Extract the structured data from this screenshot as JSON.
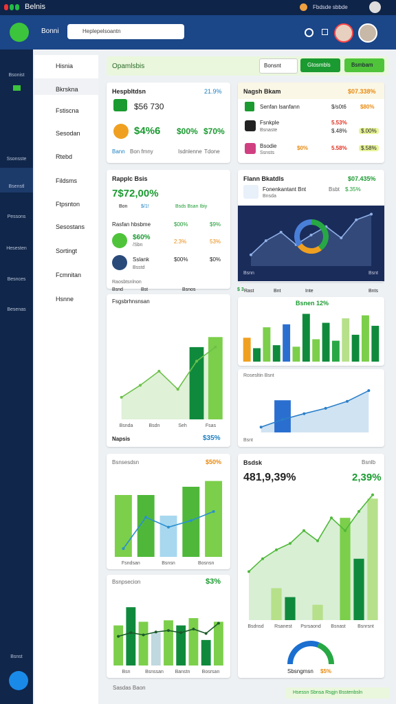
{
  "status_bar": {
    "app": "Belnis",
    "info": "Fbdsde sbbde"
  },
  "header": {
    "title": "Bonni",
    "search": "Heplepelsoantn"
  },
  "icon_nav": [
    "Bsonist",
    "Ssonsste",
    "Bsenstl",
    "Pessons",
    "Hesesten",
    "Besnces",
    "Besenas",
    "Bsnst"
  ],
  "side_menu": [
    "Hisnia",
    "Bkrskna",
    "Fstiscna",
    "Sesodan",
    "Rtebd",
    "Fildsms",
    "Ftpsnton",
    "Sesostans",
    "Sortingt",
    "Fcmnitan",
    "Hsnne"
  ],
  "toolbar": {
    "title": "Opamlsbis",
    "dropdown": "Bonsnt",
    "buttons": [
      "Gtosmbls",
      "Bsmbam"
    ]
  },
  "cards": {
    "summary": {
      "title": "Hespbltdsn",
      "badge": "21.9%",
      "amount": "$56 730",
      "big": "$4%6",
      "stats": [
        "$00%",
        "$70%"
      ],
      "footer": [
        "Bann",
        "Bon fmny",
        "Isdnlenne",
        "Tdone"
      ]
    },
    "accounts": {
      "title": "Nagsh Bkam",
      "badge": "$07.338%",
      "rows": [
        {
          "name": "Senfan lsanfann",
          "values": [
            "$/s0t6",
            "$80%"
          ]
        },
        {
          "name": "Fsnkple",
          "sub": "Bsnaste",
          "values": [
            "5.53%",
            "$.48%",
            "$.00%"
          ]
        },
        {
          "name": "Bsodie",
          "sub": "Ssnsts",
          "values": [
            "$0%",
            "5.58%",
            "$.58%"
          ]
        }
      ]
    },
    "report": {
      "title": "Rapplc Bsis",
      "big": "7$72,00%",
      "meta": [
        "Bon",
        "$/1!",
        "Bsds Bsan Ibiy"
      ],
      "rows": [
        {
          "name": "Rasfan hbsbme",
          "values": [
            "$00%",
            "$9%"
          ]
        },
        {
          "name": "$60%",
          "sub": "/Sbn",
          "values": [
            "2.3%",
            "53%"
          ]
        },
        {
          "name": "Sslank",
          "sub": "Bsstd",
          "values": [
            "$00%",
            "$0%"
          ]
        }
      ],
      "footer": "Raosbtsnlnon"
    },
    "overview": {
      "title": "Flann Bkatdls",
      "badge": "$07.435%",
      "item": "Fonenkantant Bnt",
      "sub": "Bnsda",
      "meta": [
        "Bsbt",
        "$.35%"
      ],
      "chart": {
        "type": "bar-line",
        "line": [
          20,
          45,
          60,
          38,
          55,
          70,
          50,
          82,
          92
        ],
        "line_color": "#8fb0e8",
        "area": true,
        "ylim": [
          0,
          100
        ]
      },
      "donut": {
        "type": "donut",
        "values": [
          40,
          25,
          35
        ],
        "colors": [
          "#27a844",
          "#f0a020",
          "#4a7fd8"
        ]
      },
      "chart_labels": [
        "Bsnn",
        "Bsnt"
      ],
      "footer": [
        "Rast",
        "Bnt",
        "Inte",
        "Bnts"
      ]
    },
    "bars": {
      "header": [
        "Bsnd",
        "Bst",
        "Bsnos",
        "$ 3"
      ],
      "title": "Bsnen 12%",
      "chart": {
        "type": "bar-line",
        "bars": [
          32,
          18,
          46,
          22,
          50,
          20,
          64,
          30,
          52,
          28,
          58,
          36,
          62,
          48
        ],
        "colors": [
          "#f0a020",
          "#0f8a3c",
          "#7ccf4a",
          "#0f8a3c",
          "#2a6fd0",
          "#7ccf4a",
          "#0f8a3c",
          "#7ccf4a",
          "#0f8a3c",
          "#27a844",
          "#b6e08a",
          "#0f8a3c",
          "#7ccf4a",
          "#0f8a3c"
        ],
        "ylim": [
          0,
          70
        ]
      }
    },
    "trend": {
      "title": "Fsgsbrhnsnsan",
      "footer": [
        "Napsis",
        "$35%"
      ],
      "chart": {
        "type": "bar-line",
        "bars": [
          null,
          null,
          null,
          null,
          72,
          82
        ],
        "colors": [
          "#0f8a3c",
          "#0f8a3c",
          "#0f8a3c",
          "#0f8a3c",
          "#0f8a3c",
          "#7ccf4a"
        ],
        "line": [
          22,
          34,
          48,
          30,
          58,
          72
        ],
        "line_color": "#6cc04a",
        "area": true,
        "ylim": [
          0,
          100
        ],
        "x_labels": [
          "Bsnda",
          "Bsdn",
          "Seh",
          "Fsas"
        ]
      }
    },
    "lines": {
      "title": "Rosesltin Bsnt",
      "label": "Bsnt",
      "chart": {
        "type": "bar-line",
        "bars": [
          null,
          60,
          null,
          null,
          null,
          null
        ],
        "colors": [
          "#2a6fd0",
          "#2a6fd0",
          "#2a6fd0",
          "#2a6fd0",
          "#2a6fd0",
          "#2a6fd0"
        ],
        "line": [
          10,
          24,
          35,
          45,
          58,
          78
        ],
        "line_color": "#2a7fc8",
        "area": true,
        "ylim": [
          0,
          100
        ]
      }
    },
    "revenue": {
      "title": "Bsnsesdsn",
      "badge": "$50%",
      "chart": {
        "type": "bar-line",
        "bars": [
          75,
          75,
          50,
          85,
          92
        ],
        "colors": [
          "#7ccf4a",
          "#4fb83a",
          "#a8d8f0",
          "#4fb83a",
          "#7ccf4a"
        ],
        "line": [
          10,
          48,
          36,
          44,
          55
        ],
        "line_color": "#2a8fd0",
        "ylim": [
          0,
          100
        ],
        "x_labels": [
          "Fsndsan",
          "Bsnsn",
          "Bosnsn"
        ]
      }
    },
    "stock": {
      "title": "Bsdsk",
      "badge": "Bsnlb",
      "big": "481,9,39%",
      "side": "2,39%",
      "chart": {
        "type": "bar-line",
        "bars": [
          null,
          null,
          25,
          18,
          null,
          12,
          null,
          80,
          48,
          95
        ],
        "colors": [
          "#7ccf4a",
          "#7ccf4a",
          "#b6e08a",
          "#0f8a3c",
          "#7ccf4a",
          "#b6e08a",
          "#7ccf4a",
          "#7ccf4a",
          "#0f8a3c",
          "#b6e08a"
        ],
        "line": [
          38,
          48,
          55,
          60,
          70,
          62,
          80,
          70,
          85,
          98
        ],
        "line_color": "#4fb83a",
        "area": true,
        "ylim": [
          0,
          100
        ],
        "x_labels": [
          "Bsdnsd",
          "Rsanest",
          "Psrsaond",
          "Bsnast",
          "Bsnrsnt"
        ]
      },
      "donut": {
        "type": "donut",
        "values": [
          62,
          38
        ],
        "colors": [
          "#1a6fd0",
          "#27a844"
        ]
      },
      "donut_label": "Sbsngmsn",
      "donut_value": "$5%"
    },
    "projection": {
      "title": "Bsnpsecion",
      "badge": "$3%",
      "chart": {
        "type": "bar-line",
        "bars": [
          55,
          80,
          60,
          45,
          62,
          55,
          65,
          35,
          60
        ],
        "colors": [
          "#7ccf4a",
          "#0f8a3c",
          "#7ccf4a",
          "#c0d8e0",
          "#7ccf4a",
          "#0f8a3c",
          "#7ccf4a",
          "#0f8a3c",
          "#7ccf4a"
        ],
        "line": [
          40,
          45,
          42,
          46,
          48,
          45,
          50,
          44,
          58
        ],
        "line_color": "#1a5a2a",
        "ylim": [
          0,
          100
        ],
        "x_labels": [
          "Bsn",
          "Bsnssan",
          "Banstn",
          "Bosrsan"
        ]
      }
    }
  },
  "footer": {
    "left": "Sasdas Baon",
    "right": "Hsessn Sbnsa Rsgjn Bsstenbsln"
  }
}
